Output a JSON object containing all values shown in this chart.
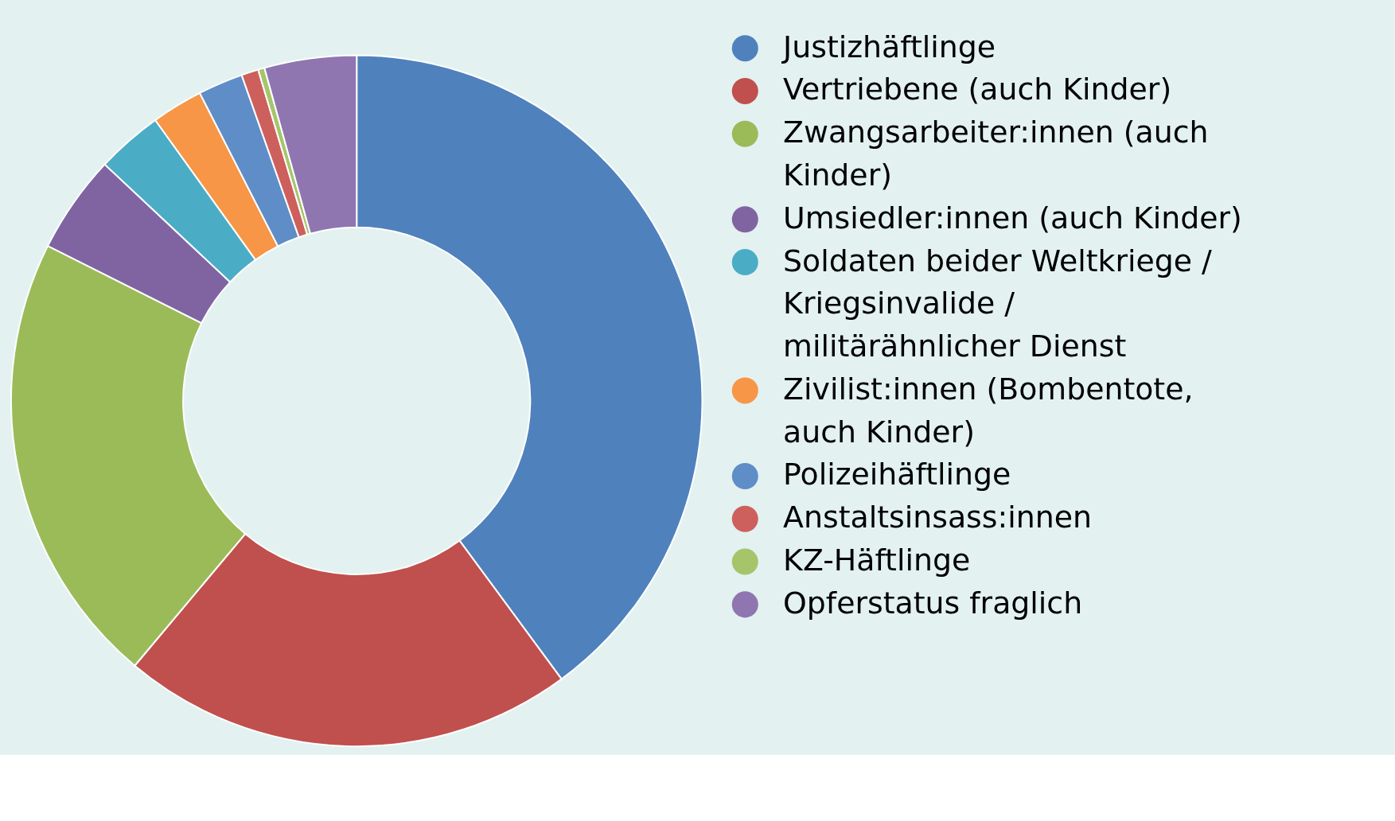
{
  "chart_data": {
    "type": "donut",
    "categories": [
      "Justizhäftlinge",
      "Vertriebene (auch Kinder)",
      "Zwangsarbeiter:innen (auch Kinder)",
      "Umsiedler:innen (auch Kinder)",
      "Soldaten beider Weltkriege / Kriegsinvalide / militärähnlicher Dienst",
      "Zivilist:innen (Bombentote, auch Kinder)",
      "Polizeihäftlinge",
      "Anstaltsinsass:innen",
      "KZ-Häftlinge",
      "Opferstatus fraglich"
    ],
    "values": [
      39.9,
      21.2,
      21.3,
      4.6,
      3.1,
      2.4,
      2.1,
      0.8,
      0.3,
      4.3
    ],
    "colors": [
      "#4f81bd",
      "#c0504d",
      "#9bbb59",
      "#8064a2",
      "#4bacc6",
      "#f79646",
      "#5f8dc8",
      "#cd605c",
      "#a6c56a",
      "#8f76b0"
    ],
    "legend": "right"
  }
}
